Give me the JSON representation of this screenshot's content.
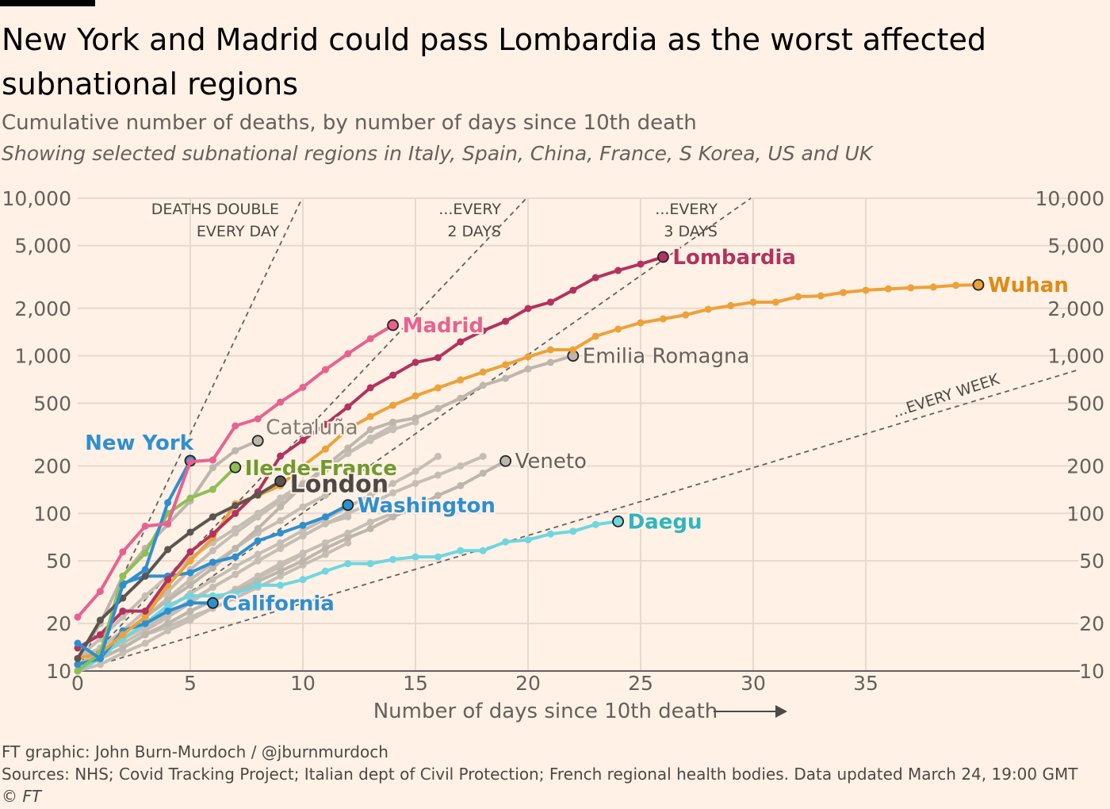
{
  "title": "New York and Madrid could pass Lombardia as the worst affected subnational regions",
  "subtitle": "Cumulative number of deaths, by number of days since 10th death",
  "subtitle2": "Showing selected subnational regions in Italy, Spain, China, France, S Korea, US and UK",
  "footer": {
    "credit": "FT graphic: John Burn-Murdoch / @jburnmurdoch",
    "sources": "Sources: NHS; Covid Tracking Project; Italian dept of Civil Protection; French regional health bodies. Data updated March 24, 19:00 GMT",
    "copyright": "© FT"
  },
  "chart_data": {
    "type": "line",
    "xlabel": "Number of days since 10th death",
    "ylabel": "",
    "xlim": [
      0,
      45
    ],
    "ylim": [
      10,
      10000
    ],
    "yscale": "log",
    "grid": true,
    "x_ticks": [
      "0",
      "5",
      "10",
      "15",
      "20",
      "25",
      "30",
      "35"
    ],
    "y_ticks": [
      {
        "value": 10,
        "label": "10"
      },
      {
        "value": 20,
        "label": "20"
      },
      {
        "value": 50,
        "label": "50"
      },
      {
        "value": 100,
        "label": "100"
      },
      {
        "value": 200,
        "label": "200"
      },
      {
        "value": 500,
        "label": "500"
      },
      {
        "value": 1000,
        "label": "1,000"
      },
      {
        "value": 2000,
        "label": "2,000"
      },
      {
        "value": 5000,
        "label": "5,000"
      },
      {
        "value": 10000,
        "label": "10,000"
      }
    ],
    "reference_lines": [
      {
        "doubling_days": 1,
        "label": [
          "DEATHS DOUBLE",
          "EVERY DAY"
        ]
      },
      {
        "doubling_days": 2,
        "label": [
          "...EVERY",
          "2 DAYS"
        ]
      },
      {
        "doubling_days": 3,
        "label": [
          "...EVERY",
          "3 DAYS"
        ]
      },
      {
        "doubling_days": 7,
        "label": [
          "...EVERY WEEK"
        ]
      }
    ],
    "series": [
      {
        "values": [
          11,
          13,
          15,
          18,
          22,
          27,
          34,
          41,
          50,
          60,
          72,
          86,
          100,
          115,
          135,
          155,
          175,
          200,
          230
        ]
      },
      {
        "values": [
          12,
          14,
          18,
          24,
          32,
          44,
          58,
          75,
          95,
          120,
          150,
          190,
          240,
          290,
          340,
          380
        ]
      },
      {
        "values": [
          11,
          13,
          16,
          20,
          25,
          31,
          38,
          46,
          55,
          65,
          78,
          92,
          110,
          130,
          155,
          185,
          230
        ]
      },
      {
        "values": [
          10,
          12,
          14,
          17,
          20,
          24,
          28,
          33,
          40,
          48,
          56,
          65,
          75,
          88,
          100
        ]
      },
      {
        "values": [
          10,
          11,
          13,
          15,
          18,
          21,
          25,
          29,
          34,
          40,
          47,
          55,
          65
        ]
      },
      {
        "values": [
          10,
          13,
          17,
          22,
          29,
          38,
          48,
          60,
          75,
          90,
          110,
          130
        ]
      },
      {
        "values": [
          10,
          12,
          14,
          17,
          19,
          22,
          25
        ]
      },
      {
        "values": [
          10,
          12,
          14,
          17,
          20,
          24,
          28,
          33,
          39,
          46,
          55
        ]
      },
      {
        "values": [
          11,
          13,
          16,
          19,
          23,
          28,
          34,
          41,
          50,
          60,
          72,
          86,
          95
        ]
      },
      {
        "values": [
          12,
          16,
          22,
          30,
          40,
          52,
          65,
          80,
          100,
          125,
          155,
          190,
          240,
          300,
          360
        ]
      },
      {
        "name": "Emilia Romagna",
        "color": "#bdb6ad",
        "label_color": "#66605c",
        "bold": false,
        "values": [
          11,
          13,
          17,
          22,
          28,
          35,
          45,
          60,
          80,
          110,
          150,
          200,
          260,
          340,
          380,
          403,
          463,
          538,
          650,
          719,
          826,
          908,
          1000
        ]
      },
      {
        "name": "Veneto",
        "color": "#bdb6ad",
        "label_color": "#66605c",
        "bold": false,
        "values": [
          10,
          12,
          14,
          17,
          20,
          24,
          28,
          32,
          37,
          43,
          50,
          60,
          70,
          80,
          95,
          110,
          130,
          150,
          180,
          215
        ]
      },
      {
        "name": "Cataluña",
        "color": "#bdb6ad",
        "label_color": "#807973",
        "bold": false,
        "values": [
          12,
          20,
          40,
          60,
          85,
          120,
          195,
          250,
          289
        ]
      },
      {
        "name": "Daegu",
        "color": "#6fd6e0",
        "label_color": "#2fb5bf",
        "bold": true,
        "values": [
          10,
          12,
          16,
          20,
          26,
          30,
          30,
          31,
          35,
          35,
          38,
          43,
          48,
          48,
          51,
          53,
          53,
          58,
          58,
          66,
          68,
          74,
          77,
          85,
          89
        ]
      },
      {
        "name": "California",
        "color": "#2e8fd0",
        "label_color": "#2e8fd0",
        "bold": true,
        "values": [
          11,
          12,
          18,
          20,
          24,
          27,
          27
        ]
      },
      {
        "name": "Washington",
        "color": "#2e8fd0",
        "label_color": "#2e8fd0",
        "bold": true,
        "values": [
          11,
          12,
          36,
          40,
          40,
          42,
          49,
          53,
          67,
          75,
          84,
          95,
          113
        ]
      },
      {
        "name": "Wuhan",
        "color": "#eda13a",
        "label_color": "#e08a15",
        "bold": true,
        "values": [
          12,
          13,
          17,
          22,
          35,
          50,
          70,
          115,
          130,
          150,
          200,
          256,
          343,
          412,
          485,
          557,
          626,
          703,
          789,
          877,
          984,
          1092,
          1092,
          1330,
          1476,
          1619,
          1715,
          1818,
          1973,
          2080,
          2190,
          2190,
          2373,
          2400,
          2520,
          2606,
          2660,
          2700,
          2730,
          2800,
          2820
        ]
      },
      {
        "name": "Lombardia",
        "color": "#b3325e",
        "label_color": "#b3325e",
        "bold": true,
        "values": [
          14,
          17,
          24,
          24,
          38,
          57,
          74,
          100,
          137,
          231,
          291,
          367,
          474,
          627,
          754,
          908,
          973,
          1227,
          1442,
          1656,
          1996,
          2190,
          2606,
          3133,
          3478,
          3818,
          4236
        ]
      },
      {
        "name": "Ile-de-France",
        "color": "#8fbe55",
        "label_color": "#6f9a2e",
        "bold": true,
        "values": [
          10,
          13,
          40,
          56,
          100,
          125,
          142,
          196
        ]
      },
      {
        "name": "London",
        "color": "#5a5550",
        "label_color": "#4d4845",
        "bold": true,
        "values": [
          12,
          21,
          29,
          40,
          59,
          76,
          95,
          112,
          131,
          160
        ]
      },
      {
        "name": "New York",
        "color": "#2e8fd0",
        "label_color": "#2e8fd0",
        "bold": true,
        "values": [
          15,
          12,
          35,
          44,
          117,
          216
        ]
      },
      {
        "name": "Madrid",
        "color": "#e8628f",
        "label_color": "#e8628f",
        "bold": true,
        "values": [
          22,
          32,
          57,
          83,
          86,
          213,
          218,
          359,
          398,
          508,
          631,
          816,
          1030,
          1285,
          1565
        ]
      }
    ]
  }
}
